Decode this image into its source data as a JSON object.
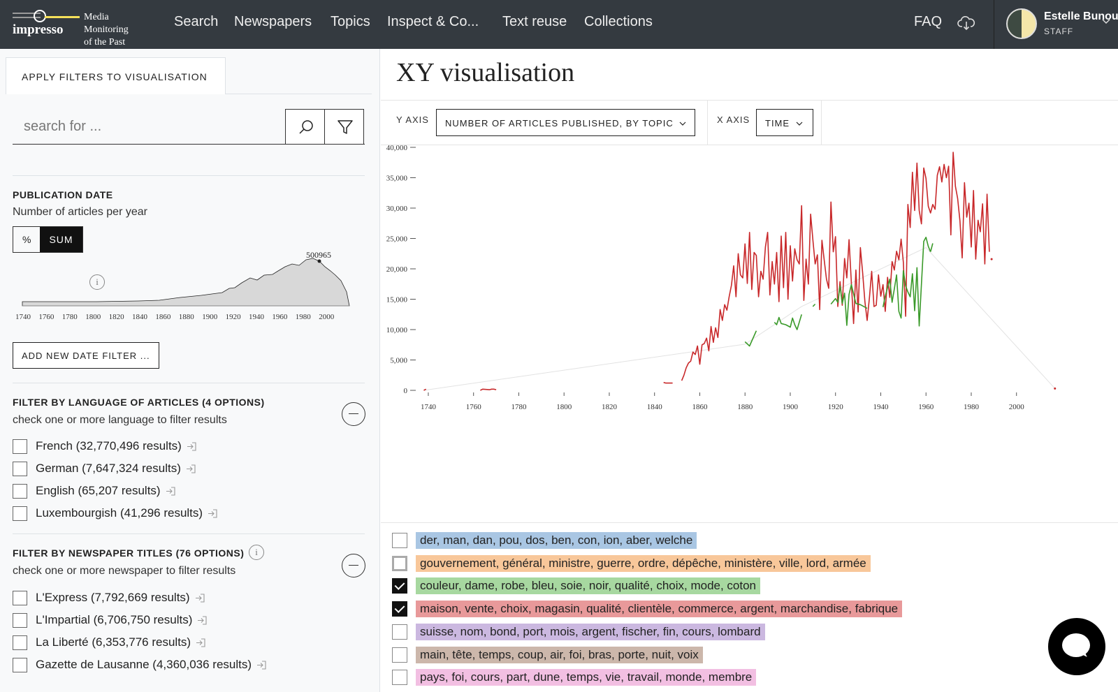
{
  "nav": {
    "logo_word": "impresso",
    "logo_tag_1": "Media Monitoring",
    "logo_tag_2": "of the Past",
    "items": [
      "Search",
      "Newspapers",
      "Topics",
      "Inspect & Co...",
      "Text reuse",
      "Collections"
    ],
    "faq": "FAQ",
    "user_name": "Estelle Bunou",
    "user_role": "STAFF"
  },
  "sidebar": {
    "tab_label": "APPLY FILTERS TO VISUALISATION",
    "search_placeholder": "search for ...",
    "publication_date": {
      "title": "PUBLICATION DATE",
      "subtitle": "Number of articles per year",
      "toggle_percent": "%",
      "toggle_sum": "SUM",
      "peak_label": "500965",
      "axis_years": [
        "1740",
        "1760",
        "1780",
        "1800",
        "1820",
        "1840",
        "1860",
        "1880",
        "1900",
        "1920",
        "1940",
        "1960",
        "1980",
        "2000"
      ],
      "add_filter_label": "ADD NEW DATE FILTER ..."
    },
    "language": {
      "title": "FILTER BY LANGUAGE OF ARTICLES (4 OPTIONS)",
      "subtitle": "check one or more language to filter results",
      "options": [
        "French (32,770,496 results)",
        "German (7,647,324 results)",
        "English (65,207 results)",
        "Luxembourgish (41,296 results)"
      ]
    },
    "newspapers": {
      "title": "FILTER BY NEWSPAPER TITLES (76 OPTIONS)",
      "subtitle": "check one or more newspaper to filter results",
      "options": [
        "L'Express (7,792,669 results)",
        "L'Impartial (6,706,750 results)",
        "La Liberté (6,353,776 results)",
        "Gazette de Lausanne (4,360,036 results)"
      ]
    }
  },
  "main": {
    "title": "XY visualisation",
    "y_axis_label": "Y AXIS",
    "y_axis_value": "NUMBER OF ARTICLES PUBLISHED, BY TOPIC",
    "x_axis_label": "X AXIS",
    "x_axis_value": "TIME"
  },
  "colors": {
    "red_series": "#c8282a",
    "green_series": "#3a9a2a"
  },
  "legend": [
    {
      "label": "der, man, dan, pou, dos, ben, con, ion, aber, welche",
      "color": "#a9c6e3",
      "checked": false
    },
    {
      "label": "gouvernement, général, ministre, guerre, ordre, dépêche, ministère, ville, lord, armée",
      "color": "#f8c79a",
      "checked": false
    },
    {
      "label": "couleur, dame, robe, bleu, soie, noir, qualité, choix, mode, coton",
      "color": "#a7d8a0",
      "checked": true
    },
    {
      "label": "maison, vente, choix, magasin, qualité, clientèle, commerce, argent, marchandise, fabrique",
      "color": "#e8999a",
      "checked": true
    },
    {
      "label": "suisse, nom, bond, port, mois, argent, fischer, fin, cours, lombard",
      "color": "#cbb8e0",
      "checked": false
    },
    {
      "label": "main, tête, temps, coup, air, foi, bras, porte, nuit, voix",
      "color": "#ccb7ab",
      "checked": false
    },
    {
      "label": "pays, foi, cours, part, dune, temps, vie, travail, monde, membre",
      "color": "#f2bfe2",
      "checked": false
    }
  ],
  "chart_data": {
    "type": "line",
    "x_ticks": [
      1740,
      1760,
      1780,
      1800,
      1820,
      1840,
      1860,
      1880,
      1900,
      1920,
      1940,
      1960,
      1980,
      2000
    ],
    "y_ticks": [
      "0",
      "5,000",
      "10,000",
      "15,000",
      "20,000",
      "25,000",
      "30,000",
      "35,000",
      "40,000"
    ],
    "xlim": [
      1736,
      2018
    ],
    "ylim": [
      0,
      40000
    ],
    "series": [
      {
        "color": "#c8282a",
        "x": [
          1738,
          1739,
          1759,
          1763,
          1764,
          1767,
          1768,
          1769,
          1770,
          1844,
          1845,
          1848,
          1852,
          1853,
          1854,
          1855,
          1856,
          1857,
          1858,
          1859,
          1860,
          1861,
          1862,
          1863,
          1864,
          1865,
          1866,
          1867,
          1868,
          1869,
          1870,
          1871,
          1872,
          1873,
          1874,
          1875,
          1876,
          1877,
          1878,
          1879,
          1880,
          1881,
          1882,
          1883,
          1884,
          1885,
          1886,
          1887,
          1888,
          1889,
          1890,
          1891,
          1892,
          1893,
          1894,
          1895,
          1896,
          1897,
          1898,
          1899,
          1900,
          1901,
          1902,
          1903,
          1904,
          1905,
          1906,
          1907,
          1908,
          1909,
          1910,
          1911,
          1912,
          1913,
          1914,
          1915,
          1916,
          1917,
          1918,
          1919,
          1920,
          1921,
          1922,
          1923,
          1924,
          1925,
          1926,
          1927,
          1928,
          1929,
          1930,
          1931,
          1932,
          1933,
          1934,
          1935,
          1936,
          1937,
          1938,
          1939,
          1940,
          1941,
          1942,
          1943,
          1944,
          1945,
          1946,
          1947,
          1948,
          1949,
          1950,
          1951,
          1952,
          1953,
          1954,
          1955,
          1956,
          1957,
          1958,
          1959,
          1960,
          1961,
          1962,
          1963,
          1964,
          1965,
          1966,
          1967,
          1968,
          1969,
          1970,
          1971,
          1972,
          1973,
          1974,
          1975,
          1976,
          1977,
          1978,
          1979,
          1980,
          1981,
          1982,
          1983,
          1984,
          1985,
          1986,
          1987,
          1988
        ],
        "y": [
          0,
          200,
          0,
          0,
          200,
          100,
          200,
          200,
          100,
          1300,
          1200,
          1200,
          1600,
          2500,
          3700,
          4500,
          4800,
          6300,
          5900,
          7300,
          4300,
          7500,
          7700,
          8600,
          6500,
          10500,
          7900,
          10300,
          8700,
          13300,
          11500,
          14100,
          13200,
          15400,
          17300,
          20500,
          15400,
          22500,
          19000,
          18500,
          24100,
          17600,
          26000,
          16600,
          22700,
          22200,
          15400,
          19600,
          18300,
          23600,
          26000,
          15700,
          21200,
          17500,
          22700,
          14600,
          25400,
          16900,
          26000,
          15000,
          23800,
          18000,
          23300,
          21500,
          20800,
          30400,
          14800,
          21600,
          17500,
          29000,
          24800,
          20800,
          22300,
          13300,
          24700,
          21500,
          18300,
          16800,
          31000,
          22800,
          25300,
          13800,
          17900,
          14000,
          21700,
          18500,
          24800,
          17700,
          11000,
          19800,
          12900,
          23500,
          19300,
          14600,
          11500,
          15300,
          19600,
          13800,
          14000,
          19000,
          15500,
          17400,
          13000,
          18600,
          15300,
          21200,
          19800,
          22900,
          21500,
          24900,
          21100,
          12200,
          30600,
          26800,
          35900,
          29600,
          37400,
          29600,
          27400,
          36600,
          34900,
          30300,
          29200,
          30600,
          29800,
          35400,
          36800,
          34300,
          37200,
          35000,
          36900,
          25600,
          39200,
          33600,
          31600,
          27900,
          21800,
          34200,
          28500,
          30800,
          23600,
          32900,
          21600,
          28000,
          26100,
          30700,
          20800,
          32300,
          22800
        ]
      },
      {
        "color": "#c8282a",
        "x": [
          1989
        ],
        "y": [
          21600
        ]
      },
      {
        "color": "#c8282a",
        "x": [
          2017
        ],
        "y": [
          300
        ]
      },
      {
        "color": "#3a9a2a",
        "x": [
          1880,
          1882,
          1885,
          1893,
          1894,
          1895,
          1896,
          1898,
          1900,
          1901,
          1902,
          1903,
          1905,
          1910,
          1911,
          1918,
          1920,
          1921,
          1922,
          1923,
          1924,
          1925,
          1926,
          1927,
          1929,
          1931,
          1934,
          1941,
          1942,
          1944,
          1945,
          1946,
          1947,
          1948,
          1949,
          1950,
          1951,
          1952,
          1953,
          1954,
          1955,
          1956,
          1957,
          1958,
          1959,
          1960,
          1961,
          1962
        ],
        "y": [
          8000,
          7300,
          9800,
          11200,
          10800,
          12000,
          11000,
          10800,
          10400,
          11900,
          10800,
          10000,
          12500,
          13800,
          14200,
          14200,
          15100,
          14500,
          17200,
          14300,
          16000,
          10700,
          15800,
          17400,
          14300,
          14100,
          13500,
          13700,
          15500,
          18300,
          14500,
          16700,
          19000,
          13000,
          11900,
          19700,
          17200,
          16200,
          15400,
          19200,
          13100,
          20200,
          10600,
          17500,
          24500,
          25200,
          23700,
          22800
        ]
      },
      {
        "color": "#3a9a2a",
        "x": [
          1962,
          1963
        ],
        "y": [
          22800,
          24200
        ]
      }
    ],
    "trend_line": {
      "x": [
        1738,
        1880,
        1905,
        1960,
        2017
      ],
      "y": [
        0,
        7600,
        13800,
        23500,
        300
      ]
    }
  }
}
